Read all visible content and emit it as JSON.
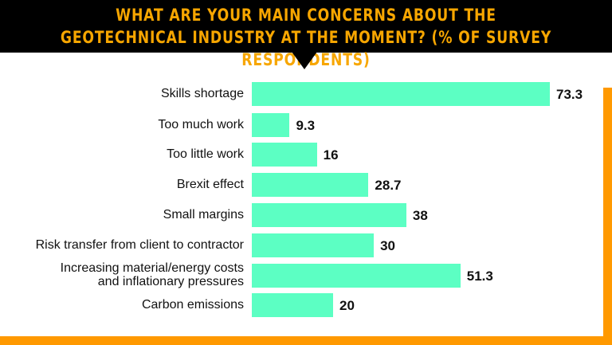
{
  "chart_data": {
    "type": "bar",
    "orientation": "horizontal",
    "title": "WHAT ARE YOUR MAIN CONCERNS ABOUT THE GEOTECHNICAL INDUSTRY AT THE MOMENT? (% OF SURVEY RESPONDENTS)",
    "categories": [
      "Skills shortage",
      "Too much work",
      "Too little work",
      "Brexit effect",
      "Small margins",
      "Risk transfer from client to contractor",
      "Increasing material/energy costs\nand inflationary pressures",
      "Carbon emissions"
    ],
    "values": [
      73.3,
      9.3,
      16,
      28.7,
      38,
      30,
      51.3,
      20
    ],
    "value_labels": [
      "73.3",
      "9.3",
      "16",
      "28.7",
      "38",
      "30",
      "51.3",
      "20"
    ],
    "xlabel": "",
    "ylabel": "",
    "grid": false,
    "colors": {
      "bar": "#5cffc3",
      "banner": "#000000",
      "title": "#f7a600",
      "frame": "#ff9900"
    }
  }
}
